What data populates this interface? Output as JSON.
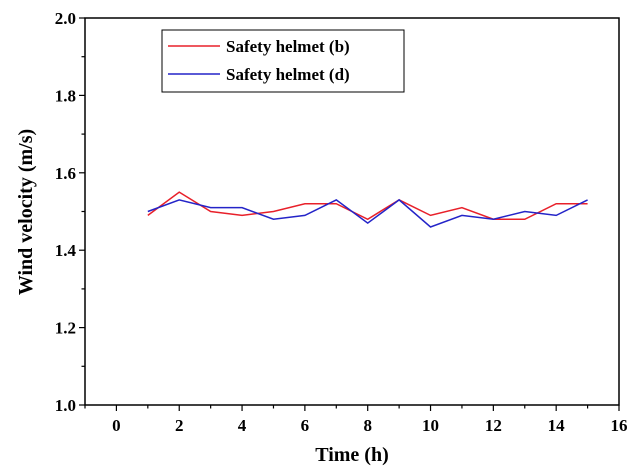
{
  "chart_data": {
    "type": "line",
    "title": "",
    "xlabel": "Time (h)",
    "ylabel": "Wind velocity (m/s)",
    "xlim": [
      -1,
      16
    ],
    "ylim": [
      1.0,
      2.0
    ],
    "x_ticks": [
      0,
      2,
      4,
      6,
      8,
      10,
      12,
      14,
      16
    ],
    "y_ticks": [
      1.0,
      1.2,
      1.4,
      1.6,
      1.8,
      2.0
    ],
    "x_tick_labels": [
      "0",
      "2",
      "4",
      "6",
      "8",
      "10",
      "12",
      "14",
      "16"
    ],
    "y_tick_labels": [
      "1.0",
      "1.2",
      "1.4",
      "1.6",
      "1.8",
      "2.0"
    ],
    "grid": false,
    "legend_position": "top-left",
    "x": [
      1,
      2,
      3,
      4,
      5,
      6,
      7,
      8,
      9,
      10,
      11,
      12,
      13,
      14,
      15
    ],
    "series": [
      {
        "name": "Safety helmet (b)",
        "color": "#e8202a",
        "values": [
          1.49,
          1.55,
          1.5,
          1.49,
          1.5,
          1.52,
          1.52,
          1.48,
          1.53,
          1.49,
          1.51,
          1.48,
          1.48,
          1.52,
          1.52
        ]
      },
      {
        "name": "Safety helmet (d)",
        "color": "#2424c8",
        "values": [
          1.5,
          1.53,
          1.51,
          1.51,
          1.48,
          1.49,
          1.53,
          1.47,
          1.53,
          1.46,
          1.49,
          1.48,
          1.5,
          1.49,
          1.53
        ]
      }
    ]
  }
}
